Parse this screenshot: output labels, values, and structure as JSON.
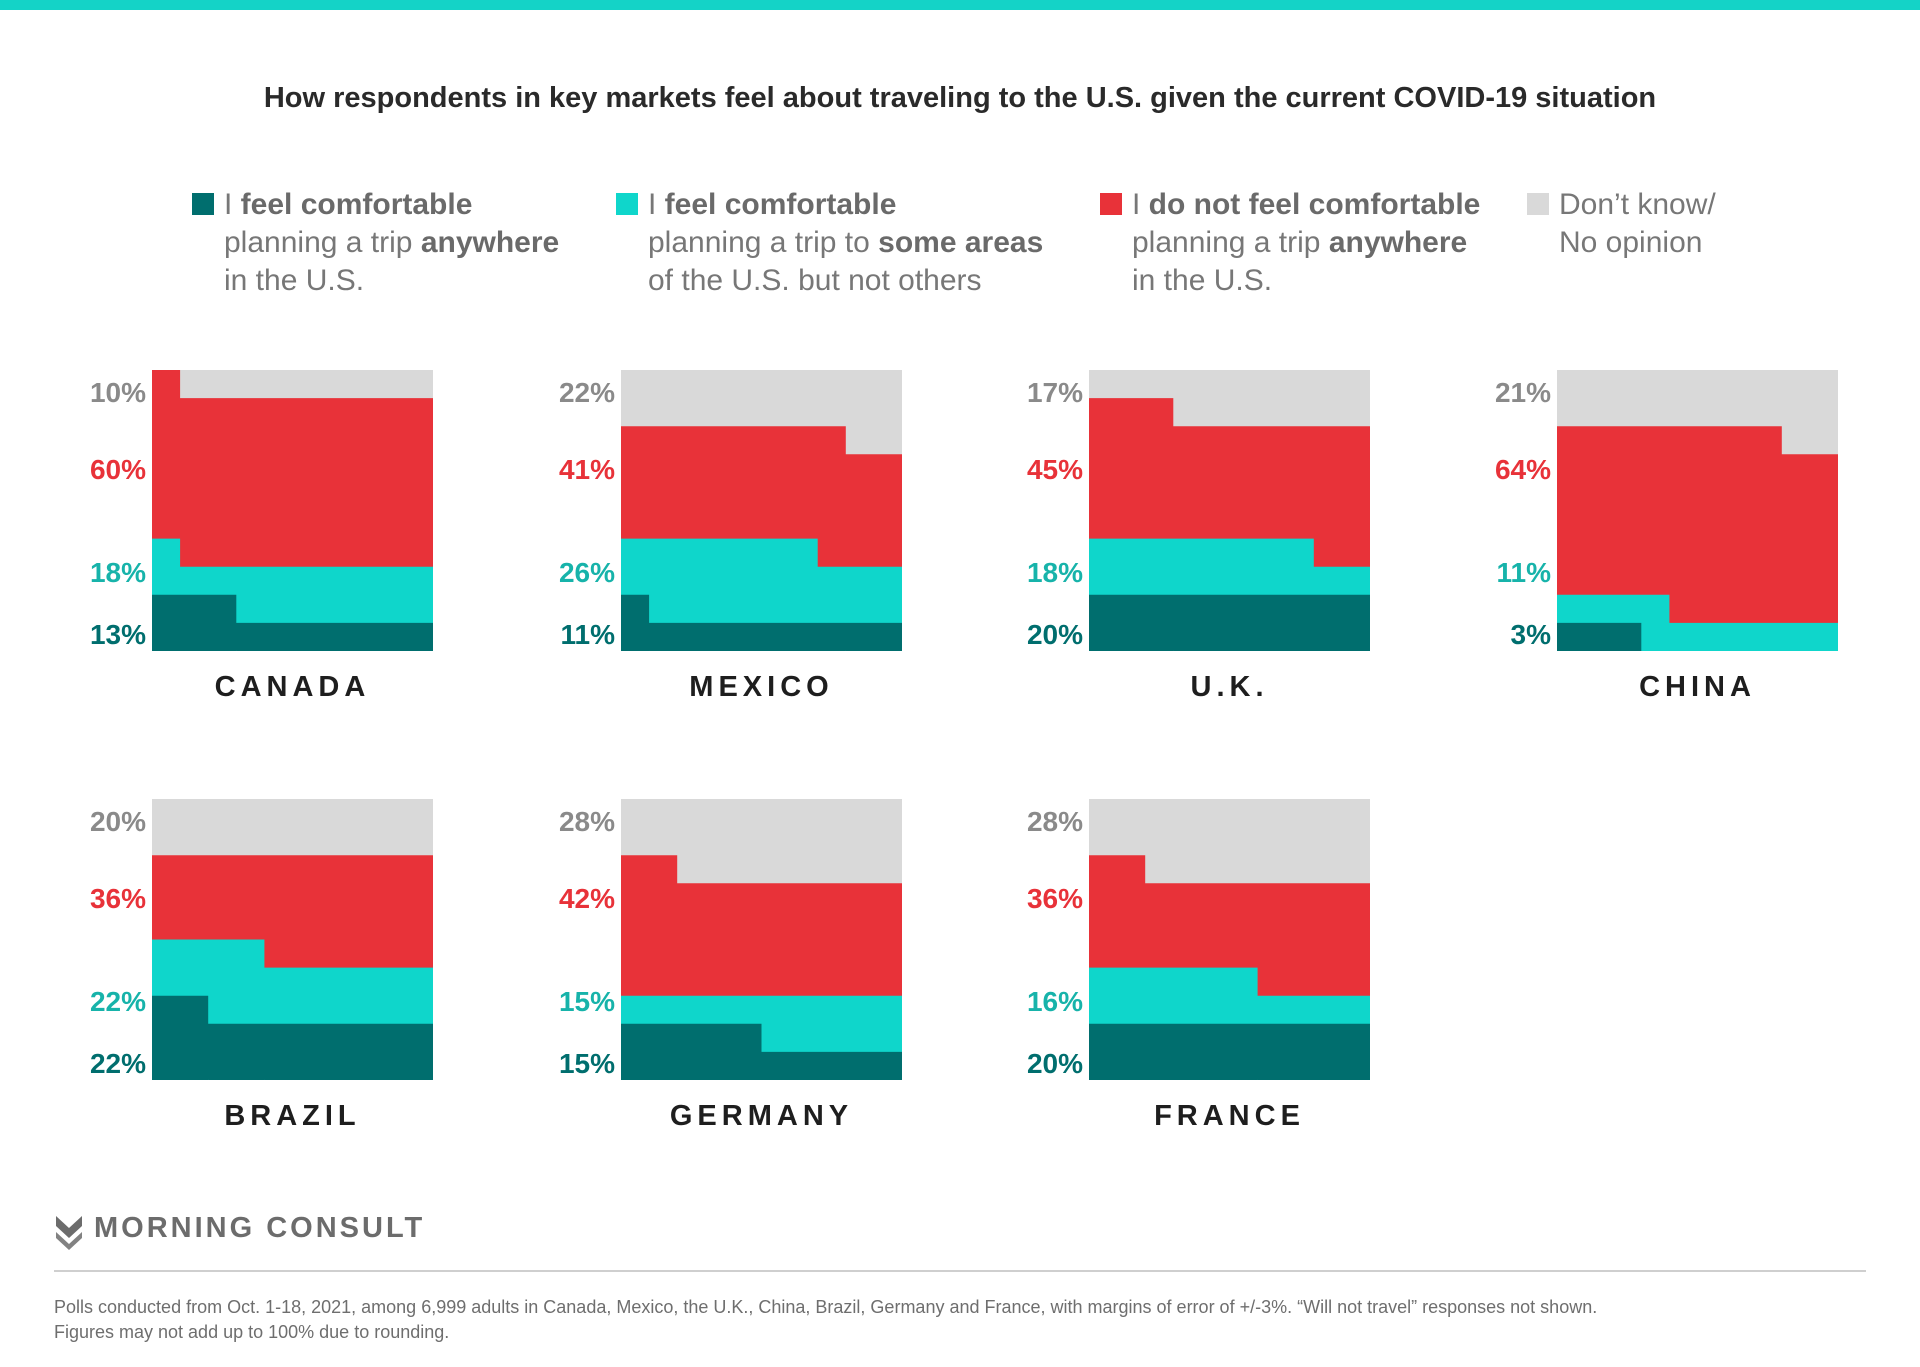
{
  "title": "How respondents in key markets feel about traveling to the U.S. given the current COVID-19 situation",
  "colors": {
    "anywhere": "#006e6e",
    "some": "#0fd6cb",
    "not": "#e83239",
    "dk": "#d9d9d9",
    "topbar": "#14d3c7"
  },
  "legend": [
    {
      "key": "anywhere",
      "lines": [
        [
          {
            "t": "I ",
            "b": false
          },
          {
            "t": "feel comfortable",
            "b": true
          }
        ],
        [
          {
            "t": "planning a trip ",
            "b": false
          },
          {
            "t": "anywhere",
            "b": true
          }
        ],
        [
          {
            "t": "in the U.S.",
            "b": false
          }
        ]
      ]
    },
    {
      "key": "some",
      "lines": [
        [
          {
            "t": "I ",
            "b": false
          },
          {
            "t": "feel comfortable",
            "b": true
          }
        ],
        [
          {
            "t": "planning a trip to ",
            "b": false
          },
          {
            "t": "some areas",
            "b": true
          }
        ],
        [
          {
            "t": "of the U.S. but not others",
            "b": false
          }
        ]
      ]
    },
    {
      "key": "not",
      "lines": [
        [
          {
            "t": "I ",
            "b": false
          },
          {
            "t": "do not feel comfortable",
            "b": true
          }
        ],
        [
          {
            "t": "planning a trip ",
            "b": false
          },
          {
            "t": "anywhere",
            "b": true
          }
        ],
        [
          {
            "t": "in the U.S.",
            "b": false
          }
        ]
      ]
    },
    {
      "key": "dk",
      "lines": [
        [
          {
            "t": "Don’t know/",
            "b": false
          }
        ],
        [
          {
            "t": "No opinion",
            "b": false
          }
        ]
      ]
    }
  ],
  "chart_data": {
    "type": "stacked-step-area",
    "series": [
      "I feel comfortable planning a trip anywhere in the U.S.",
      "I feel comfortable planning a trip to some areas of the U.S. but not others",
      "I do not feel comfortable planning a trip anywhere in the U.S.",
      "Don’t know/ No opinion"
    ],
    "markets": [
      {
        "name": "CANADA",
        "labels": [
          "13%",
          "18%",
          "60%",
          "10%"
        ],
        "steps": [
          {
            "x": 0.0,
            "a": 0.2,
            "s": 0.4,
            "n": 1.0
          },
          {
            "x": 0.1,
            "a": 0.2,
            "s": 0.3,
            "n": 0.9
          },
          {
            "x": 0.3,
            "a": 0.1,
            "s": 0.3,
            "n": 0.9
          }
        ]
      },
      {
        "name": "MEXICO",
        "labels": [
          "11%",
          "26%",
          "41%",
          "22%"
        ],
        "steps": [
          {
            "x": 0.0,
            "a": 0.2,
            "s": 0.4,
            "n": 0.8
          },
          {
            "x": 0.1,
            "a": 0.1,
            "s": 0.4,
            "n": 0.8
          },
          {
            "x": 0.7,
            "a": 0.1,
            "s": 0.3,
            "n": 0.8
          },
          {
            "x": 0.8,
            "a": 0.1,
            "s": 0.3,
            "n": 0.7
          }
        ]
      },
      {
        "name": "U.K.",
        "labels": [
          "20%",
          "18%",
          "45%",
          "17%"
        ],
        "steps": [
          {
            "x": 0.0,
            "a": 0.2,
            "s": 0.4,
            "n": 0.9
          },
          {
            "x": 0.3,
            "a": 0.2,
            "s": 0.4,
            "n": 0.8
          },
          {
            "x": 0.8,
            "a": 0.2,
            "s": 0.3,
            "n": 0.8
          }
        ]
      },
      {
        "name": "CHINA",
        "labels": [
          "3%",
          "11%",
          "64%",
          "21%"
        ],
        "steps": [
          {
            "x": 0.0,
            "a": 0.1,
            "s": 0.2,
            "n": 0.8
          },
          {
            "x": 0.3,
            "a": 0.0,
            "s": 0.2,
            "n": 0.8
          },
          {
            "x": 0.4,
            "a": 0.0,
            "s": 0.1,
            "n": 0.8
          },
          {
            "x": 0.8,
            "a": 0.0,
            "s": 0.1,
            "n": 0.7
          }
        ]
      },
      {
        "name": "BRAZIL",
        "labels": [
          "22%",
          "22%",
          "36%",
          "20%"
        ],
        "steps": [
          {
            "x": 0.0,
            "a": 0.3,
            "s": 0.5,
            "n": 0.8
          },
          {
            "x": 0.2,
            "a": 0.2,
            "s": 0.5,
            "n": 0.8
          },
          {
            "x": 0.4,
            "a": 0.2,
            "s": 0.4,
            "n": 0.8
          }
        ]
      },
      {
        "name": "GERMANY",
        "labels": [
          "15%",
          "15%",
          "42%",
          "28%"
        ],
        "steps": [
          {
            "x": 0.0,
            "a": 0.2,
            "s": 0.3,
            "n": 0.8
          },
          {
            "x": 0.2,
            "a": 0.2,
            "s": 0.3,
            "n": 0.7
          },
          {
            "x": 0.5,
            "a": 0.1,
            "s": 0.3,
            "n": 0.7
          }
        ]
      },
      {
        "name": "FRANCE",
        "labels": [
          "20%",
          "16%",
          "36%",
          "28%"
        ],
        "steps": [
          {
            "x": 0.0,
            "a": 0.2,
            "s": 0.4,
            "n": 0.8
          },
          {
            "x": 0.2,
            "a": 0.2,
            "s": 0.4,
            "n": 0.7
          },
          {
            "x": 0.6,
            "a": 0.2,
            "s": 0.3,
            "n": 0.7
          }
        ]
      }
    ]
  },
  "brand": "MORNING CONSULT",
  "footnote": [
    "Polls conducted from Oct. 1-18, 2021, among 6,999 adults in Canada, Mexico, the U.K., China, Brazil, Germany and France, with margins of error of +/-3%. “Will not travel” responses not shown.",
    "Figures may not add up to 100% due to rounding."
  ]
}
